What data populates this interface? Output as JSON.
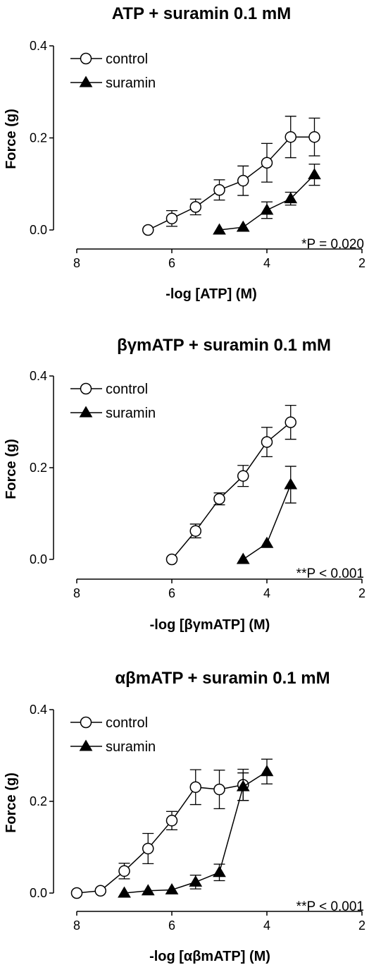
{
  "chart_data": [
    {
      "type": "line",
      "title": "ATP + suramin 0.1 mM",
      "xlabel": "-log [ATP] (M)",
      "ylabel": "Force (g)",
      "x_reversed": true,
      "xlim": [
        8,
        2
      ],
      "ylim": [
        0,
        0.4
      ],
      "xticks": [
        "8",
        "6",
        "4",
        "2"
      ],
      "yticks": [
        "0.0",
        "0.2",
        "0.4"
      ],
      "legend_position": "top-left",
      "annotation": "*P = 0.020",
      "series": [
        {
          "name": "control",
          "marker": "open-circle",
          "x": [
            6.5,
            6.0,
            5.5,
            5.0,
            4.5,
            4.0,
            3.5,
            3.0
          ],
          "y": [
            0.0,
            0.025,
            0.05,
            0.087,
            0.107,
            0.146,
            0.202,
            0.202
          ],
          "error": [
            0.0,
            0.017,
            0.017,
            0.022,
            0.032,
            0.042,
            0.045,
            0.041
          ]
        },
        {
          "name": "suramin",
          "marker": "filled-triangle",
          "x": [
            5.0,
            4.5,
            4.0,
            3.5,
            3.0
          ],
          "y": [
            0.0,
            0.006,
            0.043,
            0.068,
            0.12
          ],
          "error": [
            0.0,
            0.0,
            0.018,
            0.014,
            0.023
          ]
        }
      ]
    },
    {
      "type": "line",
      "title": "βγmATP + suramin 0.1 mM",
      "xlabel": "-log [βγmATP] (M)",
      "ylabel": "Force (g)",
      "x_reversed": true,
      "xlim": [
        8,
        2
      ],
      "ylim": [
        0,
        0.4
      ],
      "xticks": [
        "8",
        "6",
        "4",
        "2"
      ],
      "yticks": [
        "0.0",
        "0.2",
        "0.4"
      ],
      "legend_position": "top-left",
      "annotation": "**P < 0.001",
      "series": [
        {
          "name": "control",
          "marker": "open-circle",
          "x": [
            6.0,
            5.5,
            5.0,
            4.5,
            4.0,
            3.5
          ],
          "y": [
            0.0,
            0.062,
            0.132,
            0.182,
            0.256,
            0.299
          ],
          "error": [
            0.0,
            0.015,
            0.013,
            0.023,
            0.032,
            0.037
          ]
        },
        {
          "name": "suramin",
          "marker": "filled-triangle",
          "x": [
            4.5,
            4.0,
            3.5
          ],
          "y": [
            0.0,
            0.035,
            0.163
          ],
          "error": [
            0.0,
            0.0,
            0.04
          ]
        }
      ]
    },
    {
      "type": "line",
      "title": "αβmATP + suramin 0.1 mM",
      "xlabel": "-log [αβmATP] (M)",
      "ylabel": "Force (g)",
      "x_reversed": true,
      "xlim": [
        8,
        2
      ],
      "ylim": [
        0,
        0.4
      ],
      "xticks": [
        "8",
        "6",
        "4",
        "2"
      ],
      "yticks": [
        "0.0",
        "0.2",
        "0.4"
      ],
      "legend_position": "top-left",
      "annotation": "**P < 0.001",
      "series": [
        {
          "name": "control",
          "marker": "open-circle",
          "x": [
            8.0,
            7.5,
            7.0,
            6.5,
            6.0,
            5.5,
            5.0,
            4.5
          ],
          "y": [
            0.0,
            0.005,
            0.048,
            0.097,
            0.158,
            0.231,
            0.226,
            0.236
          ],
          "error": [
            0.0,
            0.0,
            0.017,
            0.033,
            0.02,
            0.038,
            0.042,
            0.034
          ]
        },
        {
          "name": "suramin",
          "marker": "filled-triangle",
          "x": [
            7.0,
            6.5,
            6.0,
            5.5,
            5.0,
            4.5,
            4.0
          ],
          "y": [
            0.0,
            0.005,
            0.007,
            0.024,
            0.045,
            0.232,
            0.265
          ],
          "error": [
            0.0,
            0.0,
            0.0,
            0.015,
            0.018,
            0.03,
            0.027
          ]
        }
      ]
    }
  ]
}
